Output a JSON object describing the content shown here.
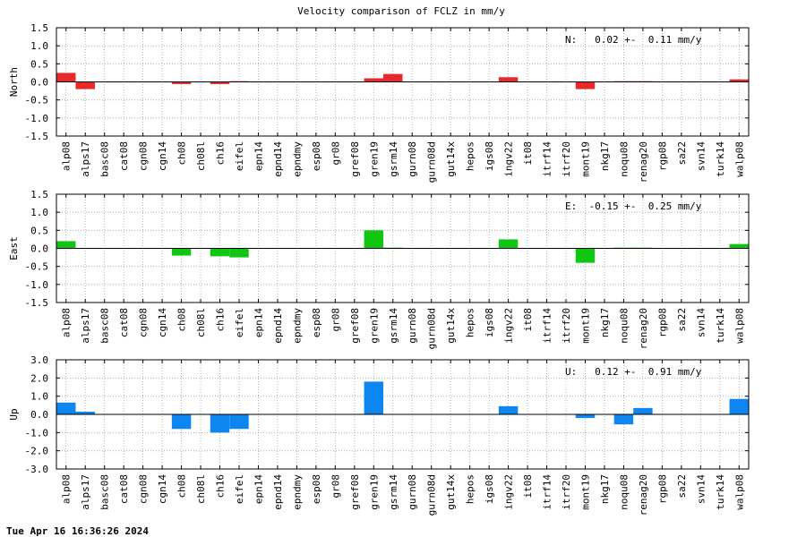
{
  "chart_data": {
    "type": "bar",
    "title": "Velocity comparison of FCLZ in mm/y",
    "categories": [
      "alp08",
      "alps17",
      "basc08",
      "cat08",
      "cgn08",
      "cgn14",
      "ch08",
      "ch08l",
      "ch16",
      "eifel",
      "epn14",
      "epnd14",
      "epndmy",
      "esp08",
      "gr08",
      "gref08",
      "gren19",
      "gsrm14",
      "gurn08",
      "gurn08d",
      "gut14x",
      "hepos",
      "igs08",
      "ingv22",
      "it08",
      "itrf14",
      "itrf20",
      "mont19",
      "nkg17",
      "noqu08",
      "renag20",
      "rgp08",
      "sa22",
      "svn14",
      "turk14",
      "walp08"
    ],
    "panels": [
      {
        "ylabel": "North",
        "color": "#e8292b",
        "ylim": [
          -1.5,
          1.5
        ],
        "yticks": [
          "1.5",
          "1.0",
          "0.5",
          "0.0",
          "-0.5",
          "-1.0",
          "-1.5"
        ],
        "stat_text": "N:   0.02 +-  0.11 mm/y",
        "values": [
          0.25,
          -0.2,
          0,
          0,
          0,
          0,
          -0.06,
          0,
          -0.06,
          0.02,
          0,
          0,
          0,
          0,
          0,
          0,
          0.1,
          0.22,
          0,
          0,
          0,
          0,
          0,
          0.13,
          0,
          0,
          0,
          -0.2,
          0,
          0.02,
          0.02,
          0,
          0,
          0,
          0,
          0.07
        ]
      },
      {
        "ylabel": "East",
        "color": "#11c611",
        "ylim": [
          -1.5,
          1.5
        ],
        "yticks": [
          "1.5",
          "1.0",
          "0.5",
          "0.0",
          "-0.5",
          "-1.0",
          "-1.5"
        ],
        "stat_text": "E:  -0.15 +-  0.25 mm/y",
        "values": [
          0.2,
          0,
          0,
          0,
          0,
          0,
          -0.2,
          0,
          -0.22,
          -0.25,
          0,
          0,
          0,
          0,
          0,
          0,
          0.5,
          0.02,
          0,
          0,
          0,
          0,
          0,
          0.25,
          0,
          0,
          0,
          -0.4,
          0,
          0.02,
          0.02,
          0,
          0,
          0,
          0,
          0.12
        ]
      },
      {
        "ylabel": "Up",
        "color": "#0d86f2",
        "ylim": [
          -3.0,
          3.0
        ],
        "yticks": [
          "3.0",
          "2.0",
          "1.0",
          "0.0",
          "-1.0",
          "-2.0",
          "-3.0"
        ],
        "stat_text": "U:   0.12 +-  0.91 mm/y",
        "values": [
          0.65,
          0.15,
          0,
          0,
          0,
          0,
          -0.8,
          0,
          -1.0,
          -0.8,
          0,
          0,
          0,
          0,
          0,
          0,
          1.8,
          0,
          0,
          0,
          0,
          0,
          0,
          0.45,
          0,
          0,
          0,
          -0.2,
          0,
          -0.55,
          0.35,
          0,
          0,
          0,
          0,
          0.85
        ]
      }
    ]
  },
  "footer": {
    "timestamp": "Tue Apr 16 16:36:26 2024"
  }
}
